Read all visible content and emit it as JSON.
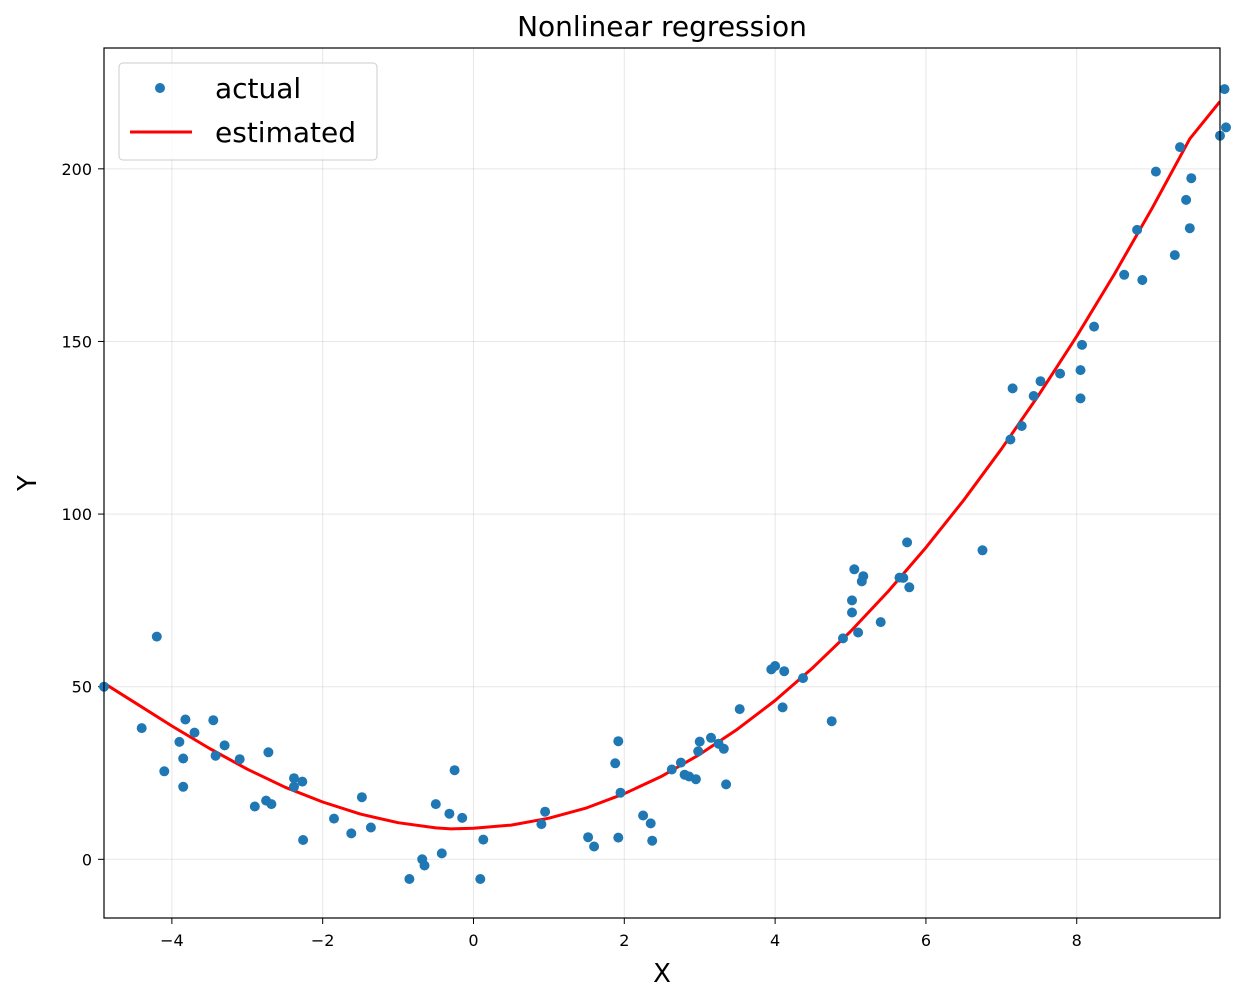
{
  "chart_data": {
    "type": "scatter",
    "title": "Nonlinear regression",
    "xlabel": "X",
    "ylabel": "Y",
    "xlim": [
      -4.9,
      9.9
    ],
    "ylim": [
      -17,
      235
    ],
    "x_ticks": [
      -4,
      -2,
      0,
      2,
      4,
      6,
      8
    ],
    "y_ticks": [
      0,
      50,
      100,
      150,
      200
    ],
    "x_tick_labels": [
      "−4",
      "−2",
      "0",
      "2",
      "4",
      "6",
      "8"
    ],
    "y_tick_labels": [
      "0",
      "50",
      "100",
      "150",
      "200"
    ],
    "grid": true,
    "legend_position": "top-left",
    "series": [
      {
        "name": "actual",
        "kind": "points",
        "color": "#1f77b4",
        "x": [
          -4.9,
          -4.4,
          -4.1,
          -4.2,
          -3.9,
          -3.85,
          -3.82,
          -3.85,
          -3.7,
          -3.45,
          -3.42,
          -3.3,
          -3.1,
          -2.9,
          -2.75,
          -2.72,
          -2.68,
          -2.38,
          -2.38,
          -2.27,
          -2.26,
          -1.85,
          -1.62,
          -1.48,
          -1.36,
          -0.85,
          -0.68,
          -0.65,
          -0.5,
          -0.42,
          -0.32,
          -0.25,
          -0.15,
          0.09,
          0.13,
          0.9,
          0.95,
          1.52,
          1.6,
          1.88,
          1.92,
          1.92,
          1.95,
          2.25,
          2.35,
          2.37,
          2.63,
          2.75,
          2.8,
          2.86,
          2.95,
          2.98,
          3.0,
          3.15,
          3.25,
          3.32,
          3.35,
          3.53,
          3.95,
          4.0,
          4.1,
          4.12,
          4.37,
          4.75,
          4.9,
          5.02,
          5.02,
          5.05,
          5.1,
          5.15,
          5.17,
          5.4,
          5.65,
          5.7,
          5.75,
          5.78,
          6.75,
          7.12,
          7.15,
          7.27,
          7.43,
          7.52,
          7.78,
          8.05,
          8.05,
          8.07,
          8.23,
          8.63,
          8.8,
          8.87,
          9.05,
          9.3,
          9.37,
          9.45,
          9.5,
          9.52,
          9.9,
          9.96,
          9.98
        ],
        "y": [
          50,
          38,
          25.5,
          64.5,
          34,
          21,
          40.5,
          29.2,
          36.7,
          40.3,
          30,
          33,
          29,
          15.3,
          17,
          31,
          16,
          23.5,
          21,
          22.5,
          5.6,
          11.8,
          7.5,
          18,
          9.2,
          -5.7,
          0,
          -1.8,
          16,
          1.7,
          13.2,
          25.8,
          12,
          -5.7,
          5.7,
          10.2,
          13.8,
          6.4,
          3.7,
          27.8,
          34.2,
          6.3,
          19.3,
          12.7,
          10.4,
          5.4,
          26,
          28,
          24.5,
          24,
          23.2,
          31.3,
          34.1,
          35.2,
          33.5,
          32,
          21.7,
          43.5,
          55,
          56,
          44,
          54.5,
          52.5,
          40,
          64,
          71.5,
          75,
          84,
          65.7,
          80.5,
          82,
          68.7,
          81.6,
          81.5,
          91.8,
          78.8,
          89.5,
          121.6,
          136.4,
          125.5,
          134.2,
          138.5,
          140.7,
          133.5,
          141.7,
          149,
          154.3,
          169.3,
          182.3,
          167.8,
          199.2,
          175,
          206.3,
          191,
          182.8,
          197.3,
          209.6,
          223.1,
          212
        ]
      },
      {
        "name": "estimated",
        "kind": "line",
        "color": "#ff0000",
        "x": [
          -4.9,
          -4.5,
          -4.0,
          -3.5,
          -3.0,
          -2.5,
          -2.0,
          -1.5,
          -1.0,
          -0.5,
          -0.3,
          0.0,
          0.5,
          1.0,
          1.5,
          2.0,
          2.5,
          3.0,
          3.5,
          4.0,
          4.5,
          5.0,
          5.5,
          6.0,
          6.5,
          7.0,
          7.5,
          8.0,
          8.5,
          9.0,
          9.5,
          9.9
        ],
        "y": [
          51,
          45.5,
          38.6,
          32.1,
          26.1,
          20.9,
          16.6,
          13.1,
          10.6,
          9.1,
          8.8,
          9.0,
          9.9,
          11.9,
          14.9,
          19.0,
          24.1,
          30.4,
          37.7,
          46.0,
          55.5,
          66.0,
          77.6,
          90.3,
          104.0,
          118.8,
          134.6,
          151.5,
          169.5,
          188.6,
          208.7,
          219.5
        ]
      }
    ]
  }
}
